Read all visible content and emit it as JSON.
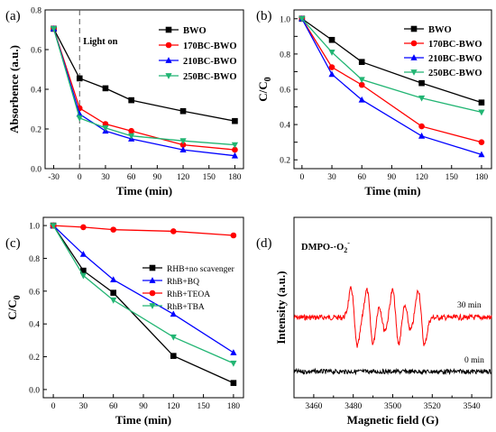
{
  "chart_data": [
    {
      "panel": "(a)",
      "type": "line",
      "xlabel": "Time (min)",
      "ylabel": "Absorbence (a.u.)",
      "x": [
        -30,
        0,
        30,
        60,
        120,
        180
      ],
      "xticks": [
        -30,
        0,
        30,
        60,
        90,
        120,
        150,
        180
      ],
      "yticks": [
        0.0,
        0.2,
        0.4,
        0.6,
        0.8
      ],
      "xlim": [
        -40,
        190
      ],
      "ylim": [
        0.0,
        0.8
      ],
      "annotation": "Light on",
      "vline_x": 0,
      "series": [
        {
          "name": "BWO",
          "color": "#000000",
          "marker": "square",
          "values": [
            0.705,
            0.455,
            0.405,
            0.345,
            0.29,
            0.24
          ]
        },
        {
          "name": "170BC-BWO",
          "color": "#ff0000",
          "marker": "circle",
          "values": [
            0.705,
            0.305,
            0.225,
            0.19,
            0.12,
            0.095
          ]
        },
        {
          "name": "210BC-BWO",
          "color": "#0000ff",
          "marker": "triangle-up",
          "values": [
            0.705,
            0.275,
            0.19,
            0.15,
            0.095,
            0.065
          ]
        },
        {
          "name": "250BC-BWO",
          "color": "#22b573",
          "marker": "triangle-down",
          "values": [
            0.705,
            0.255,
            0.205,
            0.165,
            0.14,
            0.12
          ]
        }
      ]
    },
    {
      "panel": "(b)",
      "type": "line",
      "xlabel": "Time (min)",
      "ylabel": "C/C",
      "ylabel_sub": "0",
      "x": [
        0,
        30,
        60,
        120,
        180
      ],
      "xticks": [
        0,
        30,
        60,
        90,
        120,
        150,
        180
      ],
      "yticks": [
        0.2,
        0.3,
        0.4,
        0.5,
        0.6,
        0.7,
        0.8,
        0.9,
        1.0
      ],
      "yticklabels": [
        "0.2",
        "",
        "0.4",
        "",
        "0.6",
        "",
        "0.8",
        "",
        "1.0"
      ],
      "xlim": [
        -8,
        190
      ],
      "ylim": [
        0.15,
        1.05
      ],
      "series": [
        {
          "name": "BWO",
          "color": "#000000",
          "marker": "square",
          "values": [
            1.0,
            0.88,
            0.755,
            0.635,
            0.525
          ]
        },
        {
          "name": "170BC-BWO",
          "color": "#ff0000",
          "marker": "circle",
          "values": [
            1.0,
            0.725,
            0.625,
            0.39,
            0.3
          ]
        },
        {
          "name": "210BC-BWO",
          "color": "#0000ff",
          "marker": "triangle-up",
          "values": [
            1.0,
            0.685,
            0.54,
            0.335,
            0.23
          ]
        },
        {
          "name": "250BC-BWO",
          "color": "#22b573",
          "marker": "triangle-down",
          "values": [
            1.0,
            0.81,
            0.655,
            0.55,
            0.47
          ]
        }
      ]
    },
    {
      "panel": "(c)",
      "type": "line",
      "xlabel": "Time (min)",
      "ylabel": "C/C",
      "ylabel_sub": "0",
      "x": [
        0,
        30,
        60,
        120,
        180
      ],
      "xticks": [
        0,
        30,
        60,
        90,
        120,
        150,
        180
      ],
      "yticks": [
        0.0,
        0.2,
        0.4,
        0.6,
        0.8,
        1.0
      ],
      "xlim": [
        -10,
        190
      ],
      "ylim": [
        -0.05,
        1.05
      ],
      "series": [
        {
          "name": "RHB+no scavenger",
          "color": "#000000",
          "marker": "square",
          "values": [
            1.0,
            0.725,
            0.59,
            0.205,
            0.04
          ]
        },
        {
          "name": "RhB+BQ",
          "color": "#0000ff",
          "marker": "triangle-up",
          "values": [
            1.0,
            0.825,
            0.67,
            0.46,
            0.225
          ]
        },
        {
          "name": "RhB+TEOA",
          "color": "#ff0000",
          "marker": "circle",
          "values": [
            1.0,
            0.99,
            0.975,
            0.965,
            0.94
          ]
        },
        {
          "name": "RhB+TBA",
          "color": "#22b573",
          "marker": "triangle-down",
          "values": [
            1.0,
            0.695,
            0.545,
            0.32,
            0.16
          ]
        }
      ]
    },
    {
      "panel": "(d)",
      "type": "line",
      "xlabel": "Magnetic field (G)",
      "ylabel": "Intensity (a.u.)",
      "xticks": [
        3460,
        3480,
        3500,
        3520,
        3540
      ],
      "xlim": [
        3450,
        3550
      ],
      "annotation": "DMPO-·O",
      "annotation_sub": "2",
      "annotation_sup": "-",
      "series": [
        {
          "name": "30 min",
          "color": "#ff0000"
        },
        {
          "name": "0 min",
          "color": "#000000"
        }
      ]
    }
  ]
}
